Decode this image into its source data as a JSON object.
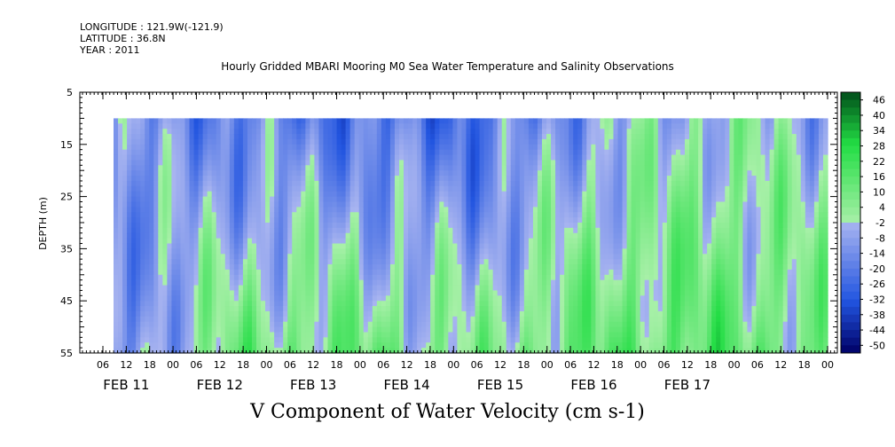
{
  "header": {
    "longitude": "LONGITUDE : 121.9W(-121.9)",
    "latitude": "LATITUDE : 36.8N",
    "year": "YEAR : 2011"
  },
  "chart_data": {
    "type": "heatmap",
    "title": "Hourly Gridded MBARI Mooring M0 Sea Water Temperature and Salinity Observations",
    "xlabel": "V Component of Water Velocity (cm s-1)",
    "ylabel": "DEPTH (m)",
    "ylim": [
      55,
      5
    ],
    "y_ticks": [
      5,
      15,
      25,
      35,
      45,
      55
    ],
    "x_hour_ticks": [
      "06",
      "12",
      "18",
      "00",
      "06",
      "12",
      "18",
      "00",
      "06",
      "12",
      "18",
      "00",
      "06",
      "12",
      "18",
      "00",
      "06",
      "12",
      "18",
      "00",
      "06",
      "12",
      "18",
      "00",
      "06",
      "12",
      "18",
      "00",
      "06",
      "12",
      "18",
      "00"
    ],
    "x_day_labels": [
      "FEB 11",
      "FEB 12",
      "FEB 13",
      "FEB 14",
      "FEB 15",
      "FEB 16",
      "FEB 17"
    ],
    "data_extent": {
      "depth_top": 10,
      "depth_bottom": 55
    },
    "colorbar": {
      "labels": [
        46,
        40,
        34,
        28,
        22,
        16,
        10,
        4,
        -2,
        -8,
        -14,
        -20,
        -26,
        -32,
        -38,
        -44,
        -50
      ],
      "min": -50,
      "max": 50,
      "colors": {
        "negative_dark": "#000066",
        "negative": "#2255e0",
        "neutral_low": "#a8b4f0",
        "neutral_high": "#a8f0a8",
        "positive": "#22dd44",
        "positive_dark": "#004d1a"
      }
    },
    "column_means": [
      {
        "day": "FEB 11",
        "shallow": -10,
        "deep": -12
      },
      {
        "day": "FEB 12",
        "shallow": -14,
        "deep": 10
      },
      {
        "day": "FEB 13",
        "shallow": -18,
        "deep": 12
      },
      {
        "day": "FEB 14",
        "shallow": -20,
        "deep": 4
      },
      {
        "day": "FEB 15",
        "shallow": -6,
        "deep": 14
      },
      {
        "day": "FEB 16",
        "shallow": 2,
        "deep": 16
      },
      {
        "day": "FEB 17",
        "shallow": -4,
        "deep": 8
      }
    ]
  }
}
